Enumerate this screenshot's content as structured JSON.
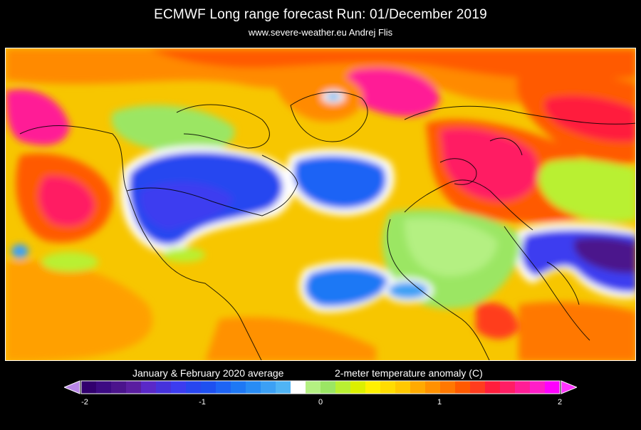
{
  "header": {
    "title": "ECMWF Long range forecast  Run: 01/December 2019",
    "subtitle": "www.severe-weather.eu   Andrej Flis"
  },
  "legend": {
    "period": "January & February 2020 average",
    "variable": "2-meter temperature anomaly (C)",
    "ticks": [
      "-2",
      "-1",
      "0",
      "1",
      "2"
    ],
    "min": -2,
    "max": 2,
    "below_arrow_color": "#b987e8",
    "above_arrow_color": "#ff33ff",
    "colors": [
      "#32006e",
      "#3c0a82",
      "#4b148c",
      "#5a1ea0",
      "#5a28c8",
      "#4632dc",
      "#3c3cf0",
      "#2846f0",
      "#1e50f0",
      "#1e64f5",
      "#1e78f5",
      "#288cf5",
      "#3ca0f5",
      "#50b4f5",
      "#ffffff",
      "#b4f082",
      "#9be664",
      "#b9f032",
      "#dcf000",
      "#fff000",
      "#ffdc00",
      "#ffc800",
      "#ffaa00",
      "#ff9100",
      "#ff7800",
      "#ff5a00",
      "#ff3c1e",
      "#ff1e3c",
      "#ff1e64",
      "#ff1e96",
      "#ff1ec8",
      "#ff00ff"
    ]
  },
  "map": {
    "background_color": "#f4c300",
    "border_color": "#ffffff",
    "coastline_color": "#000000"
  }
}
